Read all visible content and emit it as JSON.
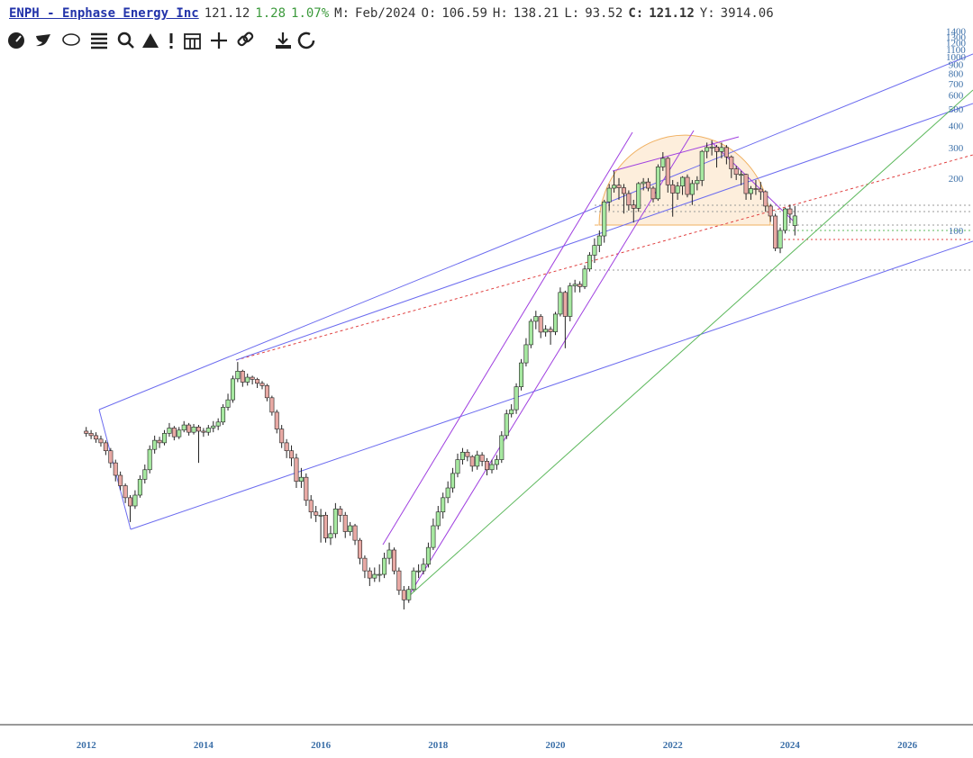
{
  "header": {
    "symbol": "ENPH - Enphase Energy Inc",
    "last": "121.12",
    "change": "1.28",
    "change_pct": "1.07%",
    "fields": [
      {
        "label": "M:",
        "value": "Feb/2024"
      },
      {
        "label": "O:",
        "value": "106.59"
      },
      {
        "label": "H:",
        "value": "138.21"
      },
      {
        "label": "L:",
        "value": "93.52"
      },
      {
        "label": "C:",
        "value": "121.12"
      },
      {
        "label": "Y:",
        "value": "3914.06"
      }
    ]
  },
  "chart_data": {
    "type": "candlestick",
    "log_scale": true,
    "grid": false,
    "up_color": "#a6e8a0",
    "down_color": "#e8a9a4",
    "xlim": [
      2010.53,
      2027.12
    ],
    "xticks": [
      2012,
      2014,
      2016,
      2018,
      2020,
      2022,
      2024,
      2026
    ],
    "ylim": [
      0.14,
      1480
    ],
    "yticks": [
      100,
      200,
      300,
      400,
      500,
      600,
      700,
      800,
      900,
      1000,
      1100,
      1200,
      1300,
      1400
    ],
    "x": [
      2012,
      2012.083,
      2012.167,
      2012.25,
      2012.333,
      2012.417,
      2012.5,
      2012.583,
      2012.667,
      2012.75,
      2012.833,
      2012.917,
      2013,
      2013.083,
      2013.167,
      2013.25,
      2013.333,
      2013.417,
      2013.5,
      2013.583,
      2013.667,
      2013.75,
      2013.833,
      2013.917,
      2014,
      2014.083,
      2014.167,
      2014.25,
      2014.333,
      2014.417,
      2014.5,
      2014.583,
      2014.667,
      2014.75,
      2014.833,
      2014.917,
      2015,
      2015.083,
      2015.167,
      2015.25,
      2015.333,
      2015.417,
      2015.5,
      2015.583,
      2015.667,
      2015.75,
      2015.833,
      2015.917,
      2016,
      2016.083,
      2016.167,
      2016.25,
      2016.333,
      2016.417,
      2016.5,
      2016.583,
      2016.667,
      2016.75,
      2016.833,
      2016.917,
      2017,
      2017.083,
      2017.167,
      2017.25,
      2017.333,
      2017.417,
      2017.5,
      2017.583,
      2017.667,
      2017.75,
      2017.833,
      2017.917,
      2018,
      2018.083,
      2018.167,
      2018.25,
      2018.333,
      2018.417,
      2018.5,
      2018.583,
      2018.667,
      2018.75,
      2018.833,
      2018.917,
      2019,
      2019.083,
      2019.167,
      2019.25,
      2019.333,
      2019.417,
      2019.5,
      2019.583,
      2019.667,
      2019.75,
      2019.833,
      2019.917,
      2020,
      2020.083,
      2020.167,
      2020.25,
      2020.333,
      2020.417,
      2020.5,
      2020.583,
      2020.667,
      2020.75,
      2020.833,
      2020.917,
      2021,
      2021.083,
      2021.167,
      2021.25,
      2021.333,
      2021.417,
      2021.5,
      2021.583,
      2021.667,
      2021.75,
      2021.833,
      2021.917,
      2022,
      2022.083,
      2022.167,
      2022.25,
      2022.333,
      2022.417,
      2022.5,
      2022.583,
      2022.667,
      2022.75,
      2022.833,
      2022.917,
      2023,
      2023.083,
      2023.167,
      2023.25,
      2023.333,
      2023.417,
      2023.5,
      2023.583,
      2023.667,
      2023.75,
      2023.833,
      2023.917,
      2024,
      2024.083
    ],
    "open": [
      7.0,
      6.8,
      6.6,
      6.3,
      6.0,
      5.4,
      4.6,
      3.9,
      3.4,
      2.9,
      2.6,
      3.0,
      3.7,
      4.2,
      5.5,
      6.2,
      6.0,
      6.8,
      7.3,
      6.5,
      7.1,
      7.6,
      6.9,
      7.4,
      7.0,
      6.9,
      7.3,
      7.5,
      7.9,
      9.6,
      10.6,
      14.0,
      15.5,
      13.4,
      14.3,
      13.9,
      13.2,
      12.8,
      10.9,
      9.0,
      7.2,
      6.0,
      5.4,
      4.9,
      3.6,
      3.8,
      2.8,
      2.4,
      2.3,
      2.3,
      1.7,
      1.8,
      2.5,
      2.3,
      1.85,
      2.0,
      1.65,
      1.3,
      1.1,
      1.0,
      1.05,
      1.05,
      1.3,
      1.45,
      1.1,
      0.85,
      0.75,
      0.86,
      1.1,
      1.1,
      1.2,
      1.5,
      2.0,
      2.4,
      2.9,
      3.3,
      4.0,
      4.8,
      5.3,
      5.0,
      4.4,
      5.1,
      4.7,
      4.2,
      4.5,
      4.8,
      6.6,
      8.8,
      9.3,
      12.6,
      17.3,
      22.0,
      30.0,
      32.0,
      26.0,
      27.0,
      26.1,
      33.0,
      44.0,
      32.0,
      48.0,
      49.0,
      47.5,
      60.0,
      72.0,
      82.0,
      93.0,
      146,
      175,
      182,
      176,
      163,
      140,
      134,
      186,
      190,
      175,
      152,
      232,
      260,
      183,
      164,
      180,
      202,
      161,
      186,
      194,
      285,
      300,
      302,
      284,
      300,
      265,
      226,
      210,
      210,
      163,
      174,
      173,
      167,
      138,
      121,
      79,
      100,
      133,
      106.59
    ],
    "high": [
      7.4,
      7.1,
      6.9,
      6.6,
      6.2,
      5.6,
      4.8,
      4.1,
      3.5,
      3.0,
      3.2,
      3.9,
      4.5,
      5.8,
      6.6,
      6.5,
      7.1,
      7.8,
      7.5,
      7.4,
      8.0,
      7.8,
      7.7,
      7.6,
      7.3,
      7.6,
      8.0,
      8.3,
      10.0,
      11.5,
      14.6,
      17.5,
      15.8,
      15.0,
      14.6,
      14.2,
      13.6,
      13.1,
      11.2,
      9.3,
      7.6,
      6.3,
      5.8,
      5.2,
      4.3,
      4.0,
      3.0,
      2.6,
      2.5,
      2.4,
      2.0,
      2.7,
      2.6,
      2.4,
      2.1,
      2.05,
      1.7,
      1.35,
      1.15,
      1.15,
      1.2,
      1.4,
      1.6,
      1.5,
      1.15,
      0.9,
      0.9,
      1.15,
      1.2,
      1.3,
      1.6,
      2.2,
      2.6,
      3.1,
      3.6,
      4.3,
      5.2,
      5.6,
      5.5,
      5.1,
      5.4,
      5.3,
      4.9,
      4.8,
      5.1,
      7.0,
      9.3,
      10.0,
      13.2,
      18.2,
      24.0,
      31.0,
      34.5,
      33.0,
      28.5,
      28.0,
      34.0,
      47.0,
      45.0,
      50.0,
      52.0,
      51.0,
      63.0,
      75.0,
      90.0,
      100,
      150,
      185,
      220,
      200,
      185,
      170,
      150,
      190,
      200,
      200,
      180,
      240,
      282,
      265,
      195,
      190,
      205,
      210,
      195,
      205,
      290,
      320,
      330,
      310,
      320,
      310,
      270,
      235,
      220,
      212,
      180,
      195,
      190,
      170,
      142,
      125,
      104,
      135,
      141,
      138.21
    ],
    "low": [
      6.5,
      6.3,
      6.0,
      5.7,
      5.1,
      4.3,
      3.6,
      3.2,
      2.7,
      2.1,
      2.5,
      2.9,
      3.5,
      4.0,
      5.2,
      5.6,
      5.8,
      6.5,
      6.2,
      6.3,
      6.9,
      6.6,
      6.7,
      4.6,
      6.5,
      6.6,
      6.9,
      7.1,
      7.6,
      9.2,
      10.2,
      13.4,
      12.6,
      12.8,
      13.0,
      12.4,
      12.2,
      10.4,
      8.6,
      6.8,
      5.6,
      4.9,
      4.4,
      3.3,
      3.3,
      2.6,
      2.2,
      2.1,
      1.6,
      1.6,
      1.55,
      1.7,
      2.1,
      1.7,
      1.75,
      1.55,
      1.2,
      1.0,
      0.9,
      0.95,
      0.95,
      1.0,
      1.2,
      1.05,
      0.8,
      0.66,
      0.72,
      0.84,
      1.0,
      1.05,
      1.15,
      1.45,
      1.9,
      2.2,
      2.7,
      3.1,
      3.8,
      4.5,
      4.7,
      4.1,
      4.2,
      4.4,
      3.9,
      4.0,
      4.2,
      4.6,
      6.3,
      8.4,
      8.8,
      12.0,
      16.5,
      21.0,
      27.0,
      24.0,
      24.5,
      22.0,
      25.0,
      32.0,
      21.0,
      30.0,
      44.0,
      44.0,
      46.0,
      58.0,
      65.0,
      75.0,
      85.0,
      130,
      165,
      150,
      125,
      130,
      111,
      128,
      170,
      168,
      145,
      148,
      220,
      165,
      120,
      150,
      160,
      155,
      140,
      170,
      180,
      260,
      270,
      230,
      260,
      240,
      200,
      195,
      182,
      150,
      150,
      160,
      150,
      128,
      112,
      76,
      74,
      96,
      110,
      93.52
    ],
    "close": [
      6.8,
      6.6,
      6.3,
      6.0,
      5.4,
      4.6,
      3.9,
      3.4,
      2.9,
      2.6,
      3.0,
      3.7,
      4.2,
      5.5,
      6.2,
      6.0,
      6.8,
      7.3,
      6.5,
      7.1,
      7.6,
      6.9,
      7.4,
      7.0,
      6.9,
      7.3,
      7.5,
      7.9,
      9.6,
      10.6,
      14.0,
      15.5,
      13.4,
      14.3,
      13.9,
      13.2,
      12.8,
      10.9,
      9.0,
      7.2,
      6.0,
      5.4,
      4.9,
      3.6,
      3.8,
      2.8,
      2.4,
      2.3,
      2.3,
      1.7,
      1.8,
      2.5,
      2.3,
      1.85,
      2.0,
      1.65,
      1.3,
      1.1,
      1.0,
      1.05,
      1.05,
      1.3,
      1.45,
      1.1,
      0.85,
      0.75,
      0.86,
      1.1,
      1.1,
      1.2,
      1.5,
      2.0,
      2.4,
      2.9,
      3.3,
      4.0,
      4.8,
      5.3,
      5.0,
      4.4,
      5.1,
      4.7,
      4.2,
      4.5,
      4.8,
      6.6,
      8.8,
      9.3,
      12.6,
      17.3,
      22.0,
      30.0,
      32.0,
      26.0,
      27.0,
      26.1,
      33.0,
      44.0,
      32.0,
      48.0,
      49.0,
      47.5,
      60.0,
      72.0,
      82.0,
      93.0,
      146,
      175,
      182,
      176,
      163,
      140,
      134,
      186,
      190,
      175,
      152,
      232,
      260,
      183,
      164,
      180,
      202,
      161,
      186,
      194,
      285,
      300,
      302,
      284,
      300,
      265,
      226,
      210,
      210,
      163,
      174,
      173,
      167,
      138,
      121,
      79,
      100,
      133,
      124,
      121.12
    ]
  }
}
